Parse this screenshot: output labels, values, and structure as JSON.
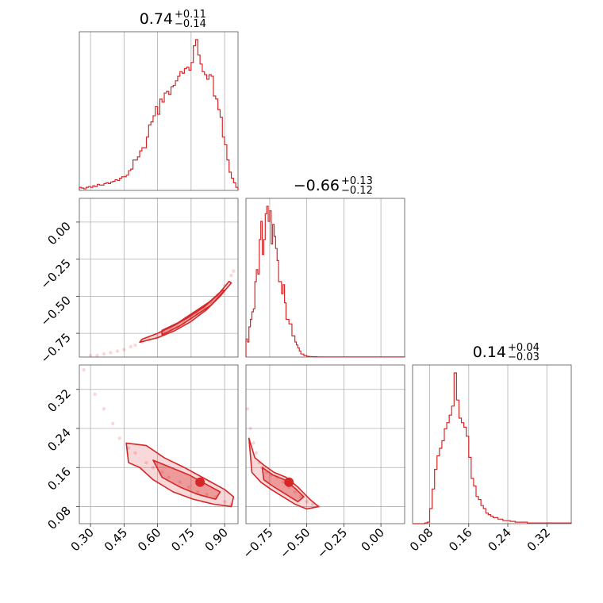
{
  "chart_data": {
    "type": "corner",
    "color": "#d62728",
    "parameters": [
      {
        "title": {
          "median": "0.74",
          "plus": "+0.11",
          "minus": "−0.14"
        },
        "range": [
          0.25,
          0.96
        ],
        "ticks": [
          0.3,
          0.45,
          0.6,
          0.75,
          0.9
        ],
        "tick_labels": [
          "0.30",
          "0.45",
          "0.60",
          "0.75",
          "0.90"
        ]
      },
      {
        "title": {
          "median": "−0.66",
          "plus": "+0.13",
          "minus": "−0.12"
        },
        "range": [
          -0.91,
          0.16
        ],
        "ticks": [
          -0.75,
          -0.5,
          -0.25,
          0.0
        ],
        "tick_labels": [
          "−0.75",
          "−0.50",
          "−0.25",
          "0.00"
        ]
      },
      {
        "title": {
          "median": "0.14",
          "plus": "+0.04",
          "minus": "−0.03"
        },
        "range": [
          0.045,
          0.37
        ],
        "ticks": [
          0.08,
          0.16,
          0.24,
          0.32
        ],
        "tick_labels": [
          "0.08",
          "0.16",
          "0.24",
          "0.32"
        ]
      }
    ],
    "histograms": [
      {
        "param": 0,
        "bin_edges": [
          0.25,
          0.26,
          0.27,
          0.28,
          0.29,
          0.3,
          0.31,
          0.32,
          0.33,
          0.34,
          0.35,
          0.36,
          0.37,
          0.38,
          0.39,
          0.4,
          0.41,
          0.42,
          0.43,
          0.44,
          0.45,
          0.46,
          0.47,
          0.48,
          0.49,
          0.5,
          0.51,
          0.52,
          0.53,
          0.54,
          0.55,
          0.56,
          0.57,
          0.58,
          0.59,
          0.6,
          0.61,
          0.62,
          0.63,
          0.64,
          0.65,
          0.66,
          0.67,
          0.68,
          0.69,
          0.7,
          0.71,
          0.72,
          0.73,
          0.74,
          0.75,
          0.76,
          0.77,
          0.78,
          0.79,
          0.8,
          0.81,
          0.82,
          0.83,
          0.84,
          0.85,
          0.86,
          0.87,
          0.88,
          0.89,
          0.9,
          0.91,
          0.92,
          0.93,
          0.94,
          0.95,
          0.96
        ],
        "counts": [
          0.02,
          0.015,
          0.01,
          0.02,
          0.025,
          0.02,
          0.03,
          0.025,
          0.04,
          0.035,
          0.035,
          0.045,
          0.05,
          0.045,
          0.055,
          0.06,
          0.07,
          0.065,
          0.08,
          0.09,
          0.09,
          0.1,
          0.13,
          0.14,
          0.2,
          0.2,
          0.22,
          0.26,
          0.28,
          0.28,
          0.35,
          0.43,
          0.45,
          0.49,
          0.55,
          0.5,
          0.6,
          0.58,
          0.64,
          0.65,
          0.63,
          0.68,
          0.69,
          0.72,
          0.75,
          0.78,
          0.77,
          0.8,
          0.81,
          0.79,
          0.84,
          0.95,
          0.99,
          0.89,
          0.83,
          0.78,
          0.76,
          0.73,
          0.76,
          0.75,
          0.62,
          0.6,
          0.53,
          0.48,
          0.35,
          0.3,
          0.2,
          0.12,
          0.08,
          0.05,
          0.02
        ]
      },
      {
        "param": 1,
        "bin_edges": [
          -0.91,
          -0.9,
          -0.89,
          -0.88,
          -0.87,
          -0.86,
          -0.85,
          -0.84,
          -0.83,
          -0.82,
          -0.81,
          -0.8,
          -0.79,
          -0.78,
          -0.77,
          -0.76,
          -0.75,
          -0.74,
          -0.73,
          -0.72,
          -0.71,
          -0.7,
          -0.69,
          -0.68,
          -0.67,
          -0.66,
          -0.65,
          -0.64,
          -0.63,
          -0.62,
          -0.61,
          -0.6,
          -0.59,
          -0.58,
          -0.57,
          -0.56,
          -0.55,
          -0.54,
          -0.53,
          -0.52,
          -0.51,
          -0.5,
          -0.49,
          -0.48,
          -0.47,
          -0.46,
          -0.45,
          -0.44,
          -0.43,
          -0.42,
          -0.41,
          -0.4,
          -0.39,
          -0.38,
          -0.37,
          -0.36,
          -0.35,
          -0.34,
          -0.33,
          -0.32,
          -0.31,
          -0.3,
          -0.29,
          -0.28,
          -0.27,
          -0.26,
          -0.25,
          -0.24,
          -0.23,
          -0.22,
          -0.21,
          -0.2,
          -0.19,
          -0.18,
          -0.17,
          -0.16,
          -0.15,
          -0.14,
          -0.13,
          -0.12,
          -0.11,
          -0.1,
          -0.09,
          -0.08,
          -0.07,
          -0.06,
          -0.05,
          -0.04,
          -0.03,
          -0.02,
          -0.01,
          0.0,
          0.01,
          0.02,
          0.03,
          0.04,
          0.05,
          0.06,
          0.07,
          0.08,
          0.09,
          0.1,
          0.11,
          0.12,
          0.13,
          0.14,
          0.15,
          0.16
        ],
        "counts": [
          0.12,
          0.1,
          0.2,
          0.25,
          0.3,
          0.32,
          0.5,
          0.58,
          0.55,
          0.78,
          0.9,
          0.68,
          0.78,
          0.95,
          1.0,
          0.9,
          0.97,
          0.75,
          0.88,
          0.8,
          0.72,
          0.64,
          0.5,
          0.5,
          0.42,
          0.48,
          0.36,
          0.25,
          0.25,
          0.22,
          0.22,
          0.14,
          0.14,
          0.1,
          0.08,
          0.06,
          0.04,
          0.02,
          0.02,
          0.01,
          0.01,
          0.005,
          0.004,
          0.003,
          0.003,
          0.002,
          0.002,
          0.002,
          0.001,
          0.001,
          0.001,
          0.001,
          0.001,
          0.001,
          0.001,
          0.001,
          0.001,
          0.001,
          0.001,
          0.001,
          0.001,
          0.001,
          0.001,
          0.001,
          0.001,
          0.001,
          0.001,
          0.001,
          0.001,
          0.001,
          0.001,
          0.001,
          0.001,
          0.001,
          0.001,
          0.001,
          0.001,
          0.001,
          0.001,
          0.001,
          0.001,
          0.001,
          0.001,
          0.001,
          0.001,
          0.001,
          0.001,
          0.001,
          0.001,
          0.001,
          0.001,
          0.001,
          0.001,
          0.001,
          0.001,
          0.001,
          0.001,
          0.001,
          0.001,
          0.001,
          0.001,
          0.001,
          0.001,
          0.001,
          0.001,
          0.001,
          0.001
        ]
      },
      {
        "param": 2,
        "bin_edges": [
          0.045,
          0.05,
          0.055,
          0.06,
          0.065,
          0.07,
          0.075,
          0.08,
          0.085,
          0.09,
          0.095,
          0.1,
          0.105,
          0.11,
          0.115,
          0.12,
          0.125,
          0.13,
          0.135,
          0.14,
          0.145,
          0.15,
          0.155,
          0.16,
          0.165,
          0.17,
          0.175,
          0.18,
          0.185,
          0.19,
          0.195,
          0.2,
          0.205,
          0.21,
          0.215,
          0.22,
          0.225,
          0.23,
          0.235,
          0.24,
          0.245,
          0.25,
          0.255,
          0.26,
          0.265,
          0.27,
          0.275,
          0.28,
          0.285,
          0.29,
          0.295,
          0.3,
          0.305,
          0.31,
          0.315,
          0.32,
          0.325,
          0.33,
          0.335,
          0.34,
          0.345,
          0.35,
          0.355,
          0.36,
          0.365,
          0.37
        ],
        "counts": [
          0,
          0,
          0,
          0,
          0,
          0.005,
          0.01,
          0.1,
          0.23,
          0.36,
          0.45,
          0.5,
          0.55,
          0.63,
          0.67,
          0.72,
          0.78,
          1.0,
          0.82,
          0.7,
          0.67,
          0.64,
          0.58,
          0.44,
          0.3,
          0.25,
          0.18,
          0.16,
          0.12,
          0.1,
          0.07,
          0.06,
          0.05,
          0.04,
          0.04,
          0.03,
          0.03,
          0.02,
          0.02,
          0.02,
          0.015,
          0.015,
          0.01,
          0.01,
          0.01,
          0.01,
          0.01,
          0.005,
          0.005,
          0.005,
          0.005,
          0.005,
          0.005,
          0.005,
          0.005,
          0.005,
          0.005,
          0.005,
          0.005,
          0.005,
          0.005,
          0.005,
          0.005,
          0.005,
          0.005
        ]
      }
    ],
    "joint_2d": [
      {
        "x_param": 0,
        "y_param": 1,
        "samples": [
          [
            0.3,
            -0.9
          ],
          [
            0.33,
            -0.9
          ],
          [
            0.36,
            -0.89
          ],
          [
            0.39,
            -0.88
          ],
          [
            0.42,
            -0.87
          ],
          [
            0.45,
            -0.86
          ],
          [
            0.48,
            -0.84
          ],
          [
            0.5,
            -0.83
          ],
          [
            0.53,
            -0.81
          ],
          [
            0.56,
            -0.79
          ],
          [
            0.6,
            -0.77
          ],
          [
            0.63,
            -0.75
          ],
          [
            0.66,
            -0.73
          ],
          [
            0.69,
            -0.71
          ],
          [
            0.72,
            -0.68
          ],
          [
            0.75,
            -0.65
          ],
          [
            0.78,
            -0.62
          ],
          [
            0.81,
            -0.58
          ],
          [
            0.84,
            -0.54
          ],
          [
            0.87,
            -0.49
          ],
          [
            0.9,
            -0.43
          ],
          [
            0.93,
            -0.36
          ],
          [
            0.94,
            -0.33
          ]
        ],
        "contours": [
          {
            "level": "outer",
            "points": [
              [
                0.52,
                -0.81
              ],
              [
                0.6,
                -0.78
              ],
              [
                0.68,
                -0.73
              ],
              [
                0.75,
                -0.67
              ],
              [
                0.82,
                -0.59
              ],
              [
                0.88,
                -0.5
              ],
              [
                0.93,
                -0.41
              ],
              [
                0.92,
                -0.4
              ],
              [
                0.87,
                -0.49
              ],
              [
                0.81,
                -0.57
              ],
              [
                0.74,
                -0.64
              ],
              [
                0.67,
                -0.7
              ],
              [
                0.6,
                -0.75
              ],
              [
                0.53,
                -0.79
              ]
            ]
          },
          {
            "level": "inner",
            "points": [
              [
                0.62,
                -0.76
              ],
              [
                0.7,
                -0.7
              ],
              [
                0.77,
                -0.63
              ],
              [
                0.84,
                -0.56
              ],
              [
                0.9,
                -0.46
              ],
              [
                0.89,
                -0.46
              ],
              [
                0.83,
                -0.54
              ],
              [
                0.76,
                -0.61
              ],
              [
                0.69,
                -0.68
              ],
              [
                0.62,
                -0.73
              ]
            ]
          }
        ]
      },
      {
        "x_param": 0,
        "y_param": 2,
        "samples": [
          [
            0.27,
            0.36
          ],
          [
            0.32,
            0.31
          ],
          [
            0.36,
            0.28
          ],
          [
            0.4,
            0.25
          ],
          [
            0.43,
            0.22
          ],
          [
            0.47,
            0.2
          ],
          [
            0.5,
            0.19
          ],
          [
            0.55,
            0.17
          ],
          [
            0.58,
            0.16
          ],
          [
            0.62,
            0.15
          ],
          [
            0.65,
            0.14
          ],
          [
            0.7,
            0.13
          ],
          [
            0.74,
            0.12
          ],
          [
            0.78,
            0.11
          ],
          [
            0.82,
            0.105
          ],
          [
            0.86,
            0.1
          ],
          [
            0.9,
            0.09
          ],
          [
            0.93,
            0.085
          ]
        ],
        "contours": [
          {
            "level": "outer",
            "points": [
              [
                0.46,
                0.21
              ],
              [
                0.55,
                0.205
              ],
              [
                0.63,
                0.18
              ],
              [
                0.72,
                0.16
              ],
              [
                0.82,
                0.135
              ],
              [
                0.9,
                0.115
              ],
              [
                0.94,
                0.1
              ],
              [
                0.93,
                0.08
              ],
              [
                0.85,
                0.085
              ],
              [
                0.76,
                0.095
              ],
              [
                0.67,
                0.11
              ],
              [
                0.58,
                0.135
              ],
              [
                0.52,
                0.16
              ],
              [
                0.47,
                0.17
              ]
            ]
          },
          {
            "level": "inner",
            "points": [
              [
                0.58,
                0.175
              ],
              [
                0.66,
                0.16
              ],
              [
                0.74,
                0.145
              ],
              [
                0.82,
                0.125
              ],
              [
                0.88,
                0.11
              ],
              [
                0.86,
                0.095
              ],
              [
                0.78,
                0.105
              ],
              [
                0.7,
                0.12
              ],
              [
                0.62,
                0.14
              ]
            ]
          }
        ],
        "peak": [
          0.79,
          0.13
        ]
      },
      {
        "x_param": 1,
        "y_param": 2,
        "samples": [
          [
            -0.9,
            0.28
          ],
          [
            -0.88,
            0.24
          ],
          [
            -0.86,
            0.21
          ],
          [
            -0.84,
            0.19
          ],
          [
            -0.82,
            0.17
          ],
          [
            -0.8,
            0.16
          ],
          [
            -0.77,
            0.15
          ],
          [
            -0.74,
            0.145
          ],
          [
            -0.7,
            0.14
          ],
          [
            -0.66,
            0.13
          ],
          [
            -0.62,
            0.12
          ],
          [
            -0.58,
            0.11
          ],
          [
            -0.54,
            0.1
          ],
          [
            -0.5,
            0.09
          ],
          [
            -0.46,
            0.085
          ],
          [
            -0.42,
            0.08
          ]
        ],
        "contours": [
          {
            "level": "outer",
            "points": [
              [
                -0.89,
                0.22
              ],
              [
                -0.85,
                0.18
              ],
              [
                -0.79,
                0.165
              ],
              [
                -0.72,
                0.15
              ],
              [
                -0.64,
                0.14
              ],
              [
                -0.56,
                0.12
              ],
              [
                -0.48,
                0.095
              ],
              [
                -0.42,
                0.08
              ],
              [
                -0.5,
                0.075
              ],
              [
                -0.58,
                0.085
              ],
              [
                -0.66,
                0.1
              ],
              [
                -0.74,
                0.115
              ],
              [
                -0.81,
                0.13
              ],
              [
                -0.87,
                0.15
              ]
            ]
          },
          {
            "level": "inner",
            "points": [
              [
                -0.8,
                0.16
              ],
              [
                -0.73,
                0.145
              ],
              [
                -0.65,
                0.135
              ],
              [
                -0.57,
                0.115
              ],
              [
                -0.52,
                0.1
              ],
              [
                -0.56,
                0.09
              ],
              [
                -0.64,
                0.105
              ],
              [
                -0.72,
                0.12
              ],
              [
                -0.79,
                0.135
              ]
            ]
          }
        ],
        "peak": [
          -0.62,
          0.13
        ]
      }
    ]
  }
}
